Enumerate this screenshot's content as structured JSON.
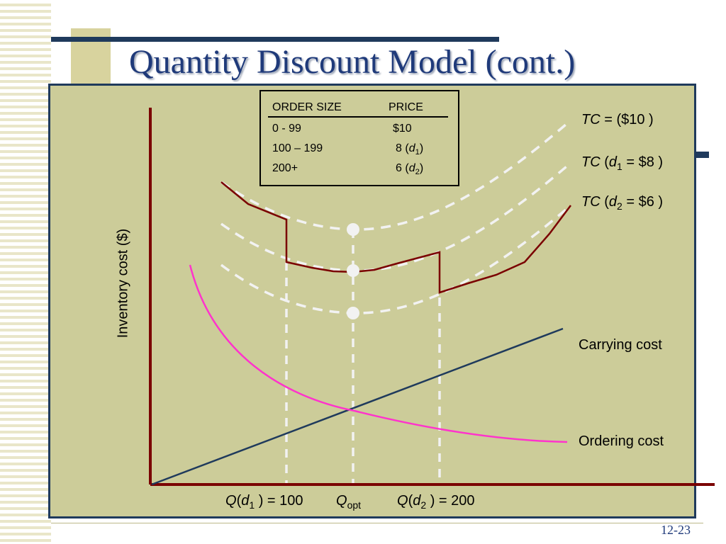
{
  "slide": {
    "title": "Quantity Discount Model (cont.)",
    "page_number": "12-23"
  },
  "legend_table": {
    "headers": [
      "ORDER SIZE",
      "PRICE"
    ],
    "rows": [
      {
        "size": "0 - 99",
        "price": "$10",
        "discount": ""
      },
      {
        "size": "100 – 199",
        "price": "8",
        "discount": "1"
      },
      {
        "size": "200+",
        "price": "6",
        "discount": "2"
      }
    ]
  },
  "curve_labels": {
    "tc_10": {
      "pre": "TC",
      "post": " = ($10 )"
    },
    "tc_8": {
      "pre": "TC",
      "mid": " (",
      "var": "d",
      "sub": "1",
      "post": " = $8 )"
    },
    "tc_6": {
      "pre": "TC",
      "mid": " (",
      "var": "d",
      "sub": "2",
      "post": " = $6 )"
    },
    "carrying": "Carrying cost",
    "ordering": "Ordering cost"
  },
  "axis": {
    "ylabel": "Inventory cost ($)",
    "x_marks": {
      "q1": {
        "var": "Q",
        "d": "d",
        "sub": "1",
        "post": " ) = 100"
      },
      "qopt": {
        "var": "Q",
        "sub": "opt"
      },
      "q2": {
        "var": "Q",
        "d": "d",
        "sub": "2",
        "post": " ) = 200"
      }
    }
  },
  "colors": {
    "axis": "#7a0000",
    "tc_solid": "#7a0000",
    "dashed": "#f2f2f2",
    "ordering": "#ff33cc",
    "carrying": "#1f3a5c",
    "panel_bg": "#cccc99",
    "title": "#1f3a7a"
  }
}
